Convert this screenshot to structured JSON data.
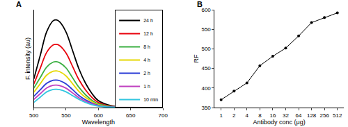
{
  "chart_data": [
    {
      "type": "line",
      "title": "A",
      "x_label": "Wavelength",
      "y_label": "F. intensity (au)",
      "x": [
        500,
        510,
        520,
        530,
        535,
        540,
        550,
        560,
        570,
        580,
        590,
        600,
        620,
        650,
        700
      ],
      "series": [
        {
          "name": "24 h",
          "color": "#000000",
          "values": [
            140,
            256,
            372,
            426,
            430,
            421,
            370,
            280,
            189,
            120,
            69,
            34,
            9,
            2,
            0
          ]
        },
        {
          "name": "12 h",
          "color": "#e8000b",
          "values": [
            115,
            193,
            271,
            307,
            310,
            304,
            267,
            202,
            136,
            87,
            50,
            25,
            6,
            2,
            0
          ]
        },
        {
          "name": "8 h",
          "color": "#3cb043",
          "values": [
            95,
            147,
            199,
            223,
            225,
            220,
            194,
            146,
            99,
            63,
            36,
            18,
            5,
            1,
            0
          ]
        },
        {
          "name": "4 h",
          "color": "#e6d800",
          "values": [
            75,
            117,
            159,
            178,
            180,
            176,
            155,
            117,
            79,
            50,
            29,
            14,
            4,
            1,
            0
          ]
        },
        {
          "name": "2 h",
          "color": "#2a3bd6",
          "values": [
            55,
            87,
            119,
            134,
            135,
            132,
            116,
            88,
            59,
            38,
            22,
            11,
            3,
            1,
            0
          ]
        },
        {
          "name": "1 h",
          "color": "#c040c0",
          "values": [
            40,
            68,
            96,
            109,
            110,
            108,
            95,
            72,
            48,
            31,
            18,
            9,
            2,
            1,
            0
          ]
        },
        {
          "name": "10 min",
          "color": "#33c6e0",
          "values": [
            25,
            51,
            77,
            89,
            90,
            88,
            77,
            59,
            40,
            25,
            14,
            7,
            2,
            0,
            0
          ]
        }
      ],
      "xlim": [
        500,
        700
      ],
      "xticks": [
        500,
        550,
        600,
        650,
        700
      ],
      "ylim": [
        0,
        480
      ],
      "tick_labels": "x",
      "grid": false,
      "legend": "upper right",
      "line_style": "solid"
    },
    {
      "type": "line",
      "title": "B",
      "x_label": "Antibody conc (μg)",
      "y_label": "RF",
      "categories": [
        "1",
        "2",
        "4",
        "8",
        "16",
        "32",
        "64",
        "128",
        "256",
        "512"
      ],
      "values": [
        370,
        392,
        413,
        457,
        481,
        502,
        533,
        567,
        580,
        592
      ],
      "color": "#000000",
      "marker": "circle",
      "line_style": "solid",
      "ylim": [
        350,
        600
      ],
      "yticks": [
        350,
        400,
        450,
        500,
        550,
        600
      ],
      "grid": false
    }
  ]
}
